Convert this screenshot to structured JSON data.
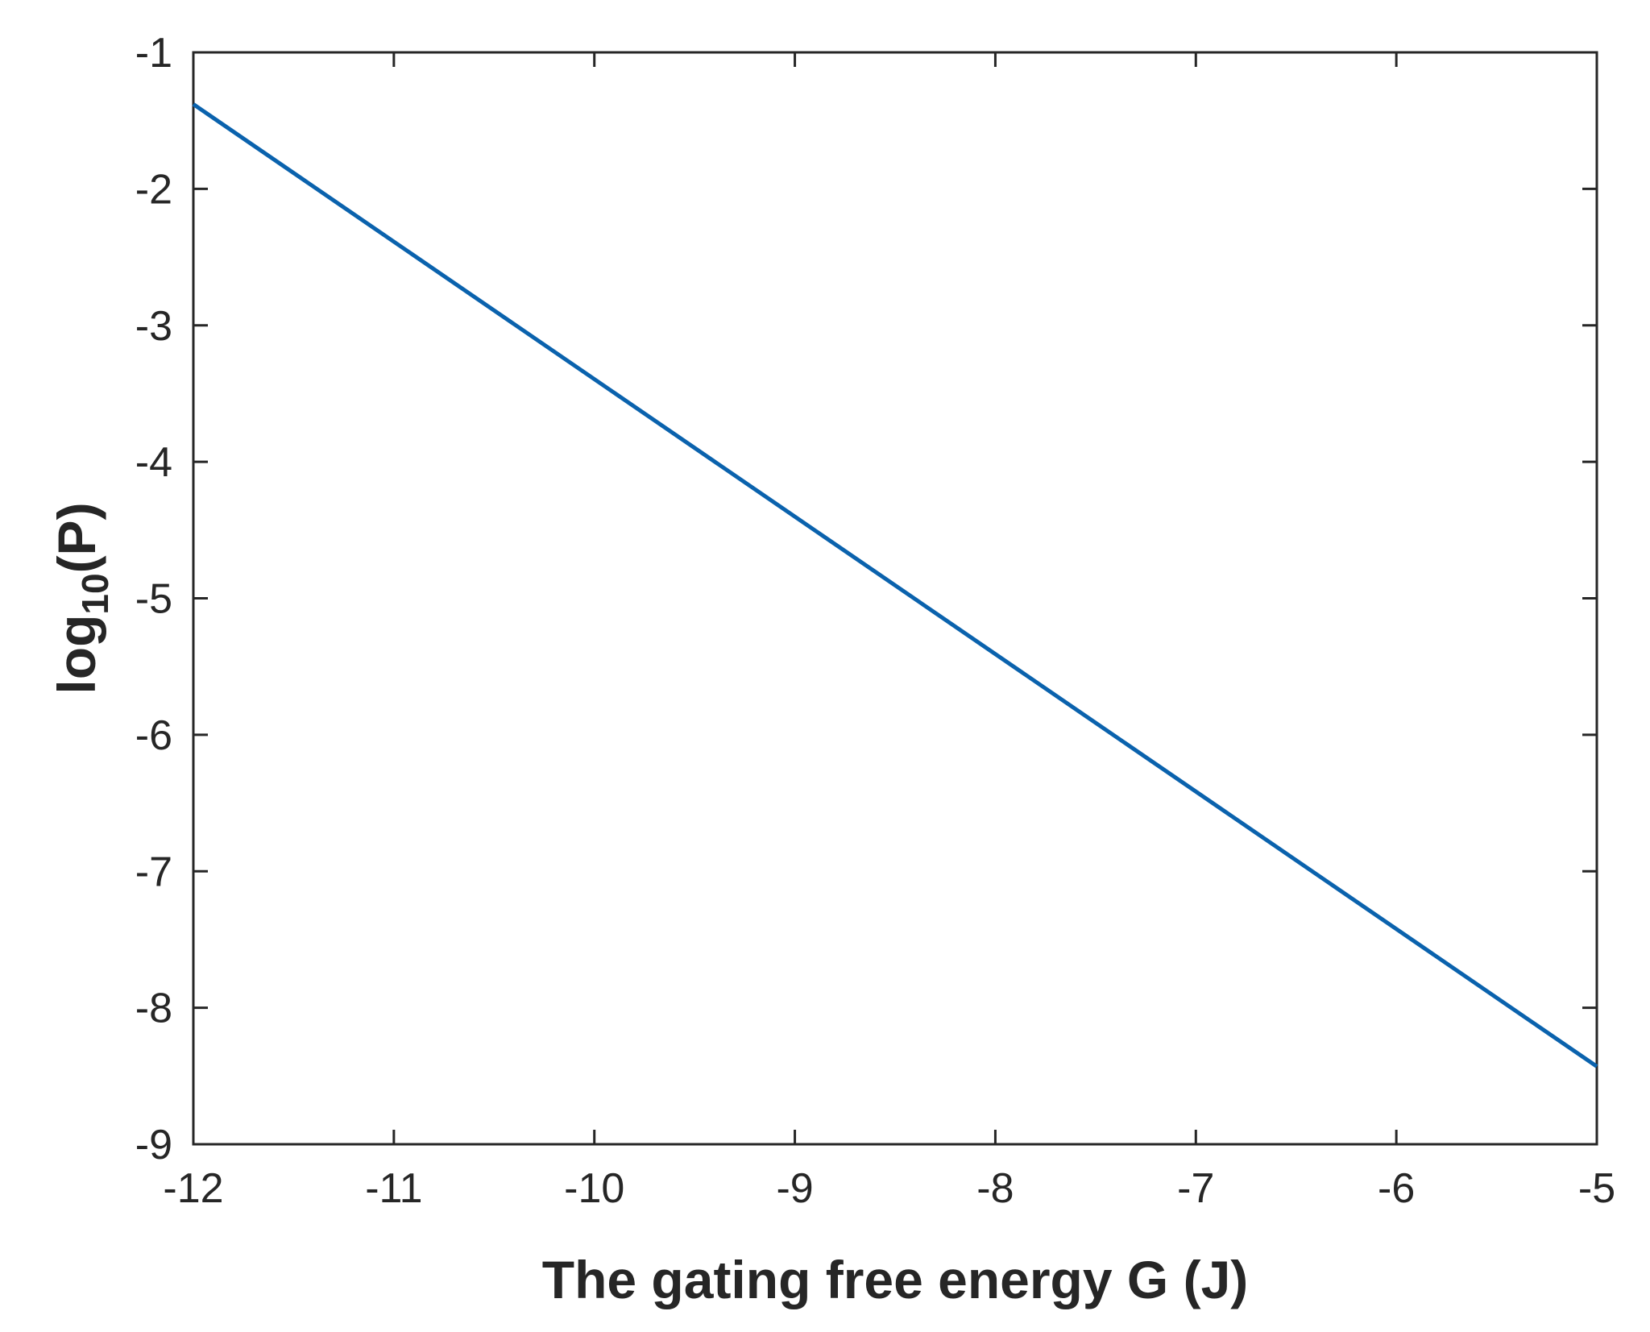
{
  "chart_data": {
    "type": "line",
    "title": "",
    "xlabel": "The gating free energy G (J)",
    "ylabel": {
      "prefix": "log",
      "subscript": "10",
      "suffix": "(P)"
    },
    "xlim": [
      -12,
      -5
    ],
    "ylim": [
      -9,
      -1
    ],
    "xticks": [
      -12,
      -11,
      -10,
      -9,
      -8,
      -7,
      -6,
      -5
    ],
    "yticks": [
      -1,
      -2,
      -3,
      -4,
      -5,
      -6,
      -7,
      -8,
      -9
    ],
    "xtick_labels": [
      "-12",
      "-11",
      "-10",
      "-9",
      "-8",
      "-7",
      "-6",
      "-5"
    ],
    "ytick_labels": [
      "-1",
      "-2",
      "-3",
      "-4",
      "-5",
      "-6",
      "-7",
      "-8",
      "-9"
    ],
    "grid": false,
    "series": [
      {
        "name": "log10(P)",
        "color": "#0a62ad",
        "x": [
          -12,
          -5
        ],
        "y": [
          -1.38,
          -8.43
        ]
      }
    ]
  }
}
